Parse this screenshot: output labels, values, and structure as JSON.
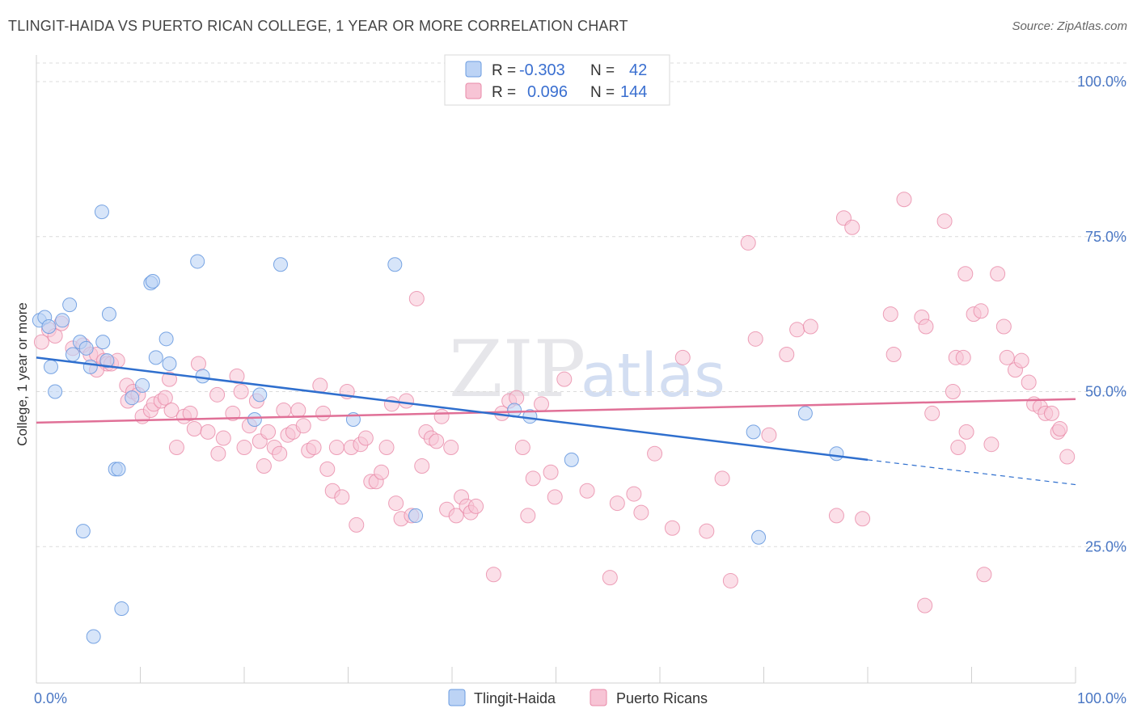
{
  "title": "TLINGIT-HAIDA VS PUERTO RICAN COLLEGE, 1 YEAR OR MORE CORRELATION CHART",
  "source": "Source: ZipAtlas.com",
  "watermark": {
    "zip": "ZIP",
    "atlas": "atlas"
  },
  "colors": {
    "blue": "#6a9be0",
    "blue_fill": "#bcd3f5",
    "blue_line": "#2f6fce",
    "pink": "#e88aa8",
    "pink_fill": "#f7c4d5",
    "pink_line": "#e07097",
    "grid": "#dcdcdc",
    "axis_label": "#4a77c4"
  },
  "legend": {
    "r_label": "R =",
    "n_label": "N =",
    "rows": [
      {
        "series": "Tlingit-Haida",
        "r": "-0.303",
        "n": "42"
      },
      {
        "series": "Puerto Ricans",
        "r": "0.096",
        "n": "144"
      }
    ]
  },
  "chart_data": {
    "type": "scatter",
    "title": "TLINGIT-HAIDA VS PUERTO RICAN COLLEGE, 1 YEAR OR MORE CORRELATION CHART",
    "xlabel": "",
    "ylabel": "College, 1 year or more",
    "xlim": [
      0,
      100
    ],
    "ylim": [
      3,
      103
    ],
    "x_tick_labels": [
      "0.0%",
      "100.0%"
    ],
    "y_ticks": [
      25,
      50,
      75,
      100
    ],
    "y_tick_labels": [
      "25.0%",
      "50.0%",
      "75.0%",
      "100.0%"
    ],
    "grid": true,
    "legend": [
      "Tlingit-Haida",
      "Puerto Ricans"
    ],
    "series": [
      {
        "name": "Tlingit-Haida",
        "r": -0.303,
        "n": 42,
        "trend": {
          "x0": 0,
          "y0": 55.5,
          "x1": 80,
          "y1": 39.0,
          "dash_to_x": 100,
          "dash_to_y": 35.0
        },
        "points": [
          [
            0.3,
            61.5
          ],
          [
            0.8,
            62
          ],
          [
            1.2,
            60.5
          ],
          [
            2.5,
            61.5
          ],
          [
            3.2,
            64
          ],
          [
            1.4,
            54
          ],
          [
            1.8,
            50
          ],
          [
            3.5,
            56
          ],
          [
            4.2,
            58
          ],
          [
            4.8,
            57
          ],
          [
            5.2,
            54
          ],
          [
            6.4,
            58
          ],
          [
            6.8,
            55
          ],
          [
            7.0,
            62.5
          ],
          [
            6.3,
            79
          ],
          [
            11,
            67.5
          ],
          [
            11.2,
            67.8
          ],
          [
            12.5,
            58.5
          ],
          [
            12.8,
            54.5
          ],
          [
            11.5,
            55.5
          ],
          [
            10.2,
            51
          ],
          [
            9.2,
            49
          ],
          [
            7.6,
            37.5
          ],
          [
            7.9,
            37.5
          ],
          [
            4.5,
            27.5
          ],
          [
            8.2,
            15
          ],
          [
            5.5,
            10.5
          ],
          [
            15.5,
            71
          ],
          [
            16,
            52.5
          ],
          [
            23.5,
            70.5
          ],
          [
            21.5,
            49.5
          ],
          [
            21,
            45.5
          ],
          [
            34.5,
            70.5
          ],
          [
            30.5,
            45.5
          ],
          [
            46,
            47
          ],
          [
            47.5,
            46
          ],
          [
            51.5,
            39
          ],
          [
            36.5,
            30
          ],
          [
            69,
            43.5
          ],
          [
            74,
            46.5
          ],
          [
            77,
            40
          ],
          [
            69.5,
            26.5
          ]
        ]
      },
      {
        "name": "Puerto Ricans",
        "r": 0.096,
        "n": 144,
        "trend": {
          "x0": 0,
          "y0": 45.0,
          "x1": 100,
          "y1": 48.8
        },
        "points": [
          [
            0.5,
            58
          ],
          [
            1.2,
            60
          ],
          [
            1.8,
            59
          ],
          [
            2.4,
            61
          ],
          [
            3.5,
            57
          ],
          [
            4.5,
            57.5
          ],
          [
            5.2,
            56
          ],
          [
            5.8,
            56
          ],
          [
            6.5,
            55
          ],
          [
            6.8,
            54.5
          ],
          [
            5.8,
            53.5
          ],
          [
            7.2,
            54.5
          ],
          [
            7.8,
            55
          ],
          [
            8.7,
            51
          ],
          [
            8.8,
            48.5
          ],
          [
            9.3,
            50
          ],
          [
            9.8,
            49.5
          ],
          [
            10.2,
            46
          ],
          [
            11,
            47
          ],
          [
            11.3,
            48
          ],
          [
            12,
            48.5
          ],
          [
            12.4,
            49
          ],
          [
            12.8,
            52
          ],
          [
            13,
            47
          ],
          [
            14.2,
            46
          ],
          [
            14.8,
            46.5
          ],
          [
            15.2,
            44
          ],
          [
            15.6,
            54.5
          ],
          [
            13.5,
            41
          ],
          [
            16.5,
            43.5
          ],
          [
            17.4,
            49.5
          ],
          [
            17.5,
            40
          ],
          [
            18,
            42.5
          ],
          [
            18.9,
            46.5
          ],
          [
            19.3,
            52.5
          ],
          [
            19.7,
            50
          ],
          [
            20,
            41
          ],
          [
            20.5,
            44.5
          ],
          [
            21.2,
            48.5
          ],
          [
            21.5,
            42
          ],
          [
            21.9,
            38
          ],
          [
            22.3,
            43.5
          ],
          [
            22.9,
            41
          ],
          [
            23.4,
            40
          ],
          [
            23.8,
            47
          ],
          [
            24.2,
            43
          ],
          [
            24.7,
            43.5
          ],
          [
            25.2,
            47
          ],
          [
            25.7,
            44.5
          ],
          [
            26.2,
            40.5
          ],
          [
            26.7,
            41
          ],
          [
            27.3,
            51
          ],
          [
            27.6,
            46.5
          ],
          [
            28,
            37.5
          ],
          [
            28.5,
            34
          ],
          [
            28.9,
            41
          ],
          [
            29.4,
            33
          ],
          [
            29.9,
            50
          ],
          [
            30.3,
            41
          ],
          [
            30.8,
            28.5
          ],
          [
            31.2,
            41.5
          ],
          [
            31.7,
            42.5
          ],
          [
            32.2,
            35.5
          ],
          [
            32.7,
            35.5
          ],
          [
            33.2,
            37
          ],
          [
            33.7,
            41
          ],
          [
            34.2,
            48
          ],
          [
            34.6,
            32
          ],
          [
            35.1,
            29.5
          ],
          [
            35.6,
            48.5
          ],
          [
            36.1,
            30
          ],
          [
            36.6,
            65
          ],
          [
            37.1,
            38
          ],
          [
            37.5,
            43.5
          ],
          [
            38,
            42.5
          ],
          [
            38.5,
            42
          ],
          [
            39,
            46
          ],
          [
            39.5,
            31
          ],
          [
            39.9,
            41
          ],
          [
            40.4,
            30
          ],
          [
            40.9,
            33
          ],
          [
            41.4,
            31.5
          ],
          [
            41.8,
            30.5
          ],
          [
            42.3,
            31.5
          ],
          [
            44,
            20.5
          ],
          [
            44.8,
            46.5
          ],
          [
            45.5,
            48.5
          ],
          [
            46.2,
            49
          ],
          [
            46.8,
            41
          ],
          [
            47.3,
            30
          ],
          [
            47.8,
            36
          ],
          [
            48.6,
            48
          ],
          [
            49.5,
            37
          ],
          [
            49.9,
            33
          ],
          [
            50.8,
            52
          ],
          [
            53,
            34
          ],
          [
            55.2,
            20
          ],
          [
            55.9,
            32
          ],
          [
            57.5,
            33.5
          ],
          [
            58.2,
            30.5
          ],
          [
            59.5,
            40
          ],
          [
            61.2,
            28
          ],
          [
            62.2,
            55.5
          ],
          [
            64.5,
            27.5
          ],
          [
            66,
            36
          ],
          [
            66.8,
            19.5
          ],
          [
            68.5,
            74
          ],
          [
            69.2,
            58.5
          ],
          [
            70.5,
            43
          ],
          [
            72.2,
            56
          ],
          [
            73.2,
            60
          ],
          [
            74.5,
            60.5
          ],
          [
            77,
            30
          ],
          [
            77.7,
            78
          ],
          [
            78.5,
            76.5
          ],
          [
            79.5,
            29.5
          ],
          [
            82.2,
            62.5
          ],
          [
            82.5,
            56
          ],
          [
            83.5,
            81
          ],
          [
            85.2,
            62
          ],
          [
            85.6,
            60.5
          ],
          [
            85.5,
            15.5
          ],
          [
            86.2,
            46.5
          ],
          [
            87.4,
            77.5
          ],
          [
            88.2,
            50
          ],
          [
            88.7,
            41
          ],
          [
            89.5,
            43.5
          ],
          [
            88.5,
            55.5
          ],
          [
            89.2,
            55.5
          ],
          [
            89.4,
            69
          ],
          [
            90.2,
            62.5
          ],
          [
            90.9,
            63
          ],
          [
            91.2,
            20.5
          ],
          [
            91.9,
            41.5
          ],
          [
            92.5,
            69
          ],
          [
            93.1,
            60.5
          ],
          [
            93.4,
            55.5
          ],
          [
            94.2,
            53.5
          ],
          [
            94.8,
            55
          ],
          [
            95.5,
            51.5
          ],
          [
            96,
            48
          ],
          [
            96.6,
            47.5
          ],
          [
            97.1,
            46.5
          ],
          [
            97.7,
            46.5
          ],
          [
            98.3,
            43.5
          ],
          [
            99.2,
            39.5
          ],
          [
            98.5,
            44
          ]
        ]
      }
    ]
  }
}
